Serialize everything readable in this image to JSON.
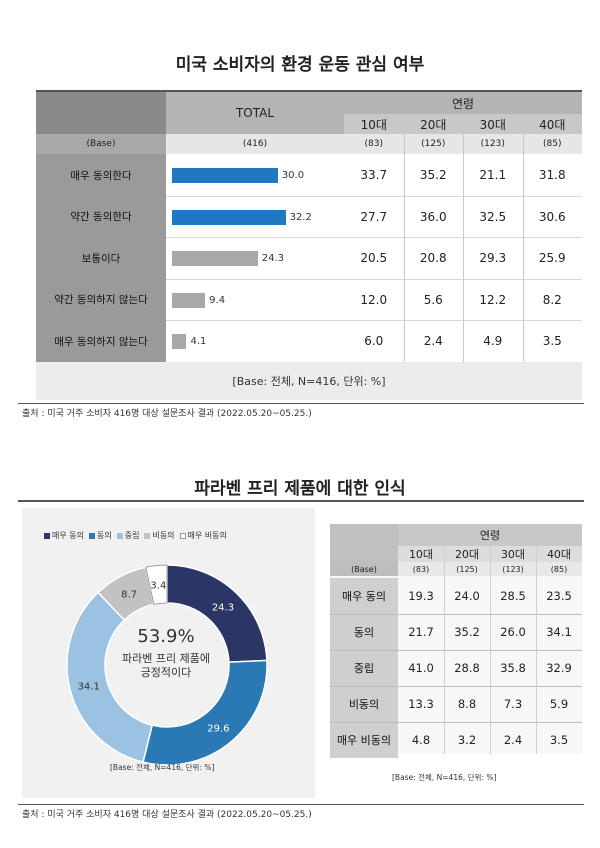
{
  "section1": {
    "title": "미국 소비자의 환경 운동 관심 여부",
    "total_header": "TOTAL",
    "age_header": "연령",
    "age_groups": [
      "10대",
      "20대",
      "30대",
      "40대"
    ],
    "base_label": "(Base)",
    "base_total": "(416)",
    "base_ages": [
      "(83)",
      "(125)",
      "(123)",
      "(85)"
    ],
    "rows": [
      {
        "label": "매우 동의한다",
        "total": 30.0,
        "total_text": "30.0",
        "ages": [
          "33.7",
          "35.2",
          "21.1",
          "31.8"
        ],
        "bar_color": "#1f78c1"
      },
      {
        "label": "약간 동의한다",
        "total": 32.2,
        "total_text": "32.2",
        "ages": [
          "27.7",
          "36.0",
          "32.5",
          "30.6"
        ],
        "bar_color": "#1f78c1"
      },
      {
        "label": "보통이다",
        "total": 24.3,
        "total_text": "24.3",
        "ages": [
          "20.5",
          "20.8",
          "29.3",
          "25.9"
        ],
        "bar_color": "#a8a8a8"
      },
      {
        "label": "약간 동의하지 않는다",
        "total": 9.4,
        "total_text": "9.4",
        "ages": [
          "12.0",
          "5.6",
          "12.2",
          "8.2"
        ],
        "bar_color": "#a8a8a8"
      },
      {
        "label": "매우 동의하지 않는다",
        "total": 4.1,
        "total_text": "4.1",
        "ages": [
          "6.0",
          "2.4",
          "4.9",
          "3.5"
        ],
        "bar_color": "#a8a8a8"
      }
    ],
    "footer": "[Base: 전체, N=416, 단위: %]",
    "source": "출처 : 미국 거주 소비자 416명 대상 설문조사 결과 (2022.05.20~05.25.)"
  },
  "section2": {
    "title": "파라벤 프리 제품에 대한 인식",
    "legend": [
      "매우 동의",
      "동의",
      "중립",
      "비동의",
      "매우 비동의"
    ],
    "chart_data": {
      "type": "pie",
      "categories": [
        "매우 동의",
        "동의",
        "중립",
        "비동의",
        "매우 비동의"
      ],
      "values": [
        24.3,
        29.6,
        34.1,
        8.7,
        3.4
      ],
      "value_labels": [
        "24.3",
        "29.6",
        "34.1",
        "8.7",
        "3.4"
      ],
      "colors": [
        "#2b3566",
        "#2a79b5",
        "#9cc2e2",
        "#c2c2c2",
        "#ffffff"
      ],
      "center_value": "53.9%",
      "center_text": [
        "파라벤 프리 제품에",
        "긍정적이다"
      ]
    },
    "chart_base": "[Base: 전체, N=416, 단위: %]",
    "table": {
      "age_header": "연령",
      "age_groups": [
        "10대",
        "20대",
        "30대",
        "40대"
      ],
      "base_label": "(Base)",
      "base_ages": [
        "(83)",
        "(125)",
        "(123)",
        "(85)"
      ],
      "rows": [
        {
          "label": "매우 동의",
          "ages": [
            "19.3",
            "24.0",
            "28.5",
            "23.5"
          ]
        },
        {
          "label": "동의",
          "ages": [
            "21.7",
            "35.2",
            "26.0",
            "34.1"
          ]
        },
        {
          "label": "중립",
          "ages": [
            "41.0",
            "28.8",
            "35.8",
            "32.9"
          ]
        },
        {
          "label": "비동의",
          "ages": [
            "13.3",
            "8.8",
            "7.3",
            "5.9"
          ]
        },
        {
          "label": "매우 비동의",
          "ages": [
            "4.8",
            "3.2",
            "2.4",
            "3.5"
          ]
        }
      ]
    },
    "table_base": "[Base: 전체, N=416, 단위: %]",
    "source": "출처 : 미국 거주 소비자 416명 대상 설문조사 결과 (2022.05.20~05.25.)"
  }
}
